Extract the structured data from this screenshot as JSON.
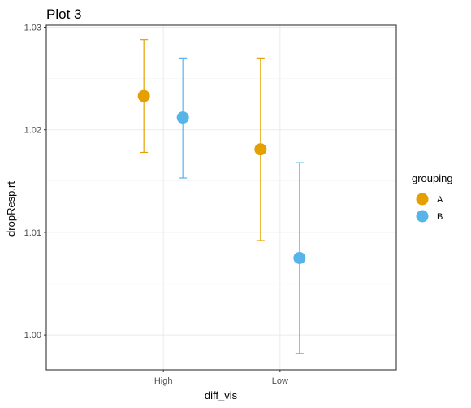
{
  "chart_data": {
    "type": "scatter",
    "title": "Plot 3",
    "xlabel": "diff_vis",
    "ylabel": "dropResp.rt",
    "categories": [
      "High",
      "Low"
    ],
    "y_ticks": [
      1.0,
      1.01,
      1.02,
      1.03
    ],
    "y_tick_labels": [
      "1.00",
      "1.01",
      "1.02",
      "1.03"
    ],
    "ylim": [
      0.9966,
      1.0302
    ],
    "grid": true,
    "legend": {
      "title": "grouping",
      "position": "right"
    },
    "error_bars": true,
    "series": [
      {
        "name": "A",
        "color": "#E69F00",
        "values": [
          1.0233,
          1.0181
        ],
        "lower": [
          1.0178,
          1.0092
        ],
        "upper": [
          1.0288,
          1.027
        ]
      },
      {
        "name": "B",
        "color": "#56B4E9",
        "values": [
          1.0212,
          1.0075
        ],
        "lower": [
          1.0153,
          0.9982
        ],
        "upper": [
          1.027,
          1.0168
        ]
      }
    ]
  }
}
